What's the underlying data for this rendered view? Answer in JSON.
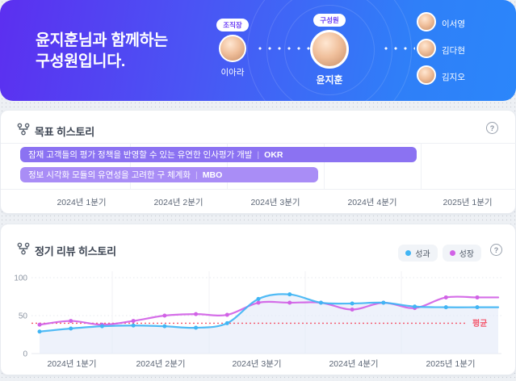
{
  "header": {
    "title_line1": "윤지훈님과 함께하는",
    "title_line2": "구성원입니다.",
    "leader": {
      "badge": "조직장",
      "name": "이아라"
    },
    "center_member": {
      "badge": "구성원",
      "name": "윤지훈"
    },
    "members": [
      {
        "name": "이서영"
      },
      {
        "name": "김다현"
      },
      {
        "name": "김지오"
      }
    ]
  },
  "goal_section": {
    "title": "목표 히스토리",
    "help_label": "?",
    "bars": [
      {
        "label": "잠재 고객들의 평가 정책을 반영할 수 있는 유연한 인사평가 개발",
        "separator": "|",
        "tag": "OKR",
        "color": "#8b72f2",
        "width_pct": 83.1
      },
      {
        "label": "정보 시각화 모듈의 유연성을 고려한 구 체계화",
        "separator": "|",
        "tag": "MBO",
        "color": "#a98df6",
        "width_pct": 62.4
      }
    ],
    "x_labels": [
      "2024년 1분기",
      "2024년 2분기",
      "2024년 3분기",
      "2024년 4분기",
      "2025년 1분기"
    ]
  },
  "review_section": {
    "title": "정기 리뷰 히스토리",
    "help_label": "?"
  },
  "chart_data": {
    "type": "line",
    "title": "정기 리뷰 히스토리",
    "x_quarter_labels": [
      "2024년 1분기",
      "2024년 2분기",
      "2024년 3분기",
      "2024년 4분기",
      "2025년 1분기"
    ],
    "months_per_quarter": 3,
    "ylim": [
      0,
      100
    ],
    "yticks": [
      0,
      50,
      100
    ],
    "grid": "quarter-vertical, dotted-horizontal",
    "legend_position": "top-right",
    "series": [
      {
        "name": "성과",
        "color": "#41b5f4",
        "area_fill": true,
        "values": [
          29,
          33,
          36,
          37,
          36,
          34,
          40,
          72,
          78,
          67,
          66,
          67,
          62,
          61,
          61
        ]
      },
      {
        "name": "성장",
        "color": "#d162e6",
        "area_fill": false,
        "values": [
          38,
          43,
          38,
          43,
          50,
          52,
          51,
          67,
          67,
          67,
          58,
          67,
          60,
          74,
          74
        ]
      }
    ],
    "average_line": {
      "label": "평균",
      "value": 40,
      "color": "#f4566b",
      "style": "dotted"
    }
  }
}
